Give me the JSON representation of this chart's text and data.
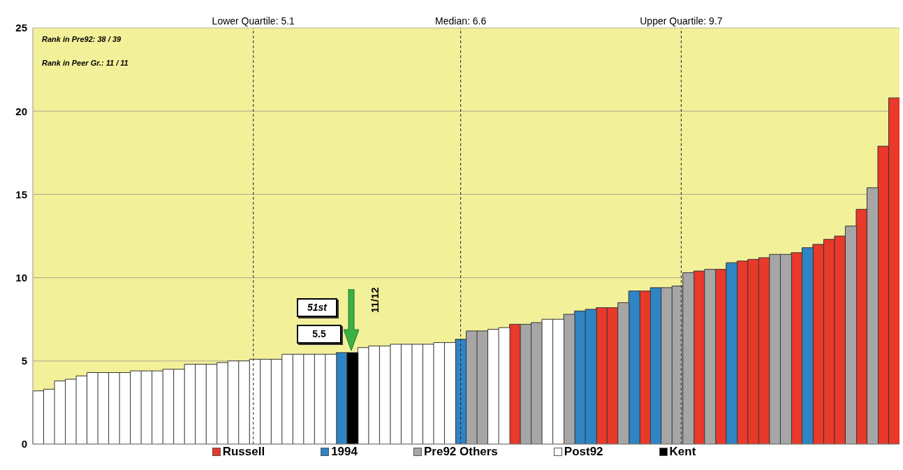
{
  "chart_data": {
    "type": "bar",
    "stacked": true,
    "categories": [
      null,
      null,
      null,
      null,
      null,
      null,
      null,
      null,
      null,
      null,
      null,
      null,
      null,
      null,
      null,
      null,
      null,
      null,
      null,
      null,
      null,
      null,
      null,
      null,
      null,
      null,
      null,
      null,
      null,
      null,
      null,
      null,
      null,
      null,
      null,
      null,
      null,
      null,
      null,
      null,
      null,
      null,
      null,
      null,
      null,
      null,
      null,
      null,
      null,
      null,
      null,
      null,
      null,
      null,
      null,
      null,
      null,
      null,
      null,
      null,
      null,
      null,
      null,
      null,
      null,
      null,
      null,
      null,
      null,
      null,
      null,
      null,
      null,
      null,
      null,
      null,
      null,
      null,
      null,
      null
    ],
    "series": [
      {
        "name": "Russell",
        "color": "#e8392a",
        "values": [
          null,
          null,
          null,
          null,
          null,
          null,
          null,
          null,
          null,
          null,
          null,
          null,
          null,
          null,
          null,
          null,
          null,
          null,
          null,
          null,
          null,
          null,
          null,
          null,
          null,
          null,
          null,
          null,
          null,
          null,
          null,
          null,
          null,
          null,
          null,
          null,
          null,
          null,
          null,
          null,
          null,
          null,
          null,
          null,
          7.2,
          null,
          null,
          null,
          null,
          null,
          null,
          null,
          8.2,
          8.2,
          null,
          null,
          9.2,
          null,
          null,
          null,
          null,
          10.4,
          null,
          10.5,
          null,
          11.0,
          11.1,
          11.2,
          null,
          null,
          11.5,
          null,
          12.0,
          12.3,
          12.5,
          null,
          14.1,
          null,
          17.9,
          20.8
        ]
      },
      {
        "name": "1994",
        "color": "#2f84c4",
        "values": [
          null,
          null,
          null,
          null,
          null,
          null,
          null,
          null,
          null,
          null,
          null,
          null,
          null,
          null,
          null,
          null,
          null,
          null,
          null,
          null,
          null,
          null,
          null,
          null,
          null,
          null,
          null,
          null,
          5.5,
          null,
          null,
          null,
          null,
          null,
          null,
          null,
          null,
          null,
          null,
          6.3,
          null,
          null,
          null,
          null,
          null,
          null,
          null,
          null,
          null,
          null,
          8.0,
          8.1,
          null,
          null,
          null,
          9.2,
          null,
          9.4,
          null,
          null,
          null,
          null,
          null,
          null,
          10.9,
          null,
          null,
          null,
          null,
          null,
          null,
          11.8,
          null,
          null,
          null,
          null,
          null,
          null,
          null,
          null
        ]
      },
      {
        "name": "Pre92 Others",
        "color": "#a6a6a6",
        "values": [
          null,
          null,
          null,
          null,
          null,
          null,
          null,
          null,
          null,
          null,
          null,
          null,
          null,
          null,
          null,
          null,
          null,
          null,
          null,
          null,
          null,
          null,
          null,
          null,
          null,
          null,
          null,
          null,
          null,
          null,
          null,
          null,
          null,
          null,
          null,
          null,
          null,
          null,
          null,
          null,
          6.8,
          6.8,
          null,
          null,
          null,
          7.2,
          7.3,
          null,
          null,
          7.8,
          null,
          null,
          null,
          null,
          8.5,
          null,
          null,
          null,
          9.4,
          9.5,
          10.3,
          null,
          10.5,
          null,
          null,
          null,
          null,
          null,
          11.4,
          11.4,
          null,
          null,
          null,
          null,
          null,
          13.1,
          null,
          15.4,
          null,
          null
        ]
      },
      {
        "name": "Post92",
        "color": "#ffffff",
        "values": [
          3.2,
          3.3,
          3.8,
          3.9,
          4.1,
          4.3,
          4.3,
          4.3,
          4.3,
          4.4,
          4.4,
          4.4,
          4.5,
          4.5,
          4.8,
          4.8,
          4.8,
          4.9,
          5.0,
          5.0,
          5.1,
          5.1,
          5.1,
          5.4,
          5.4,
          5.4,
          5.4,
          5.4,
          null,
          null,
          5.8,
          5.9,
          5.9,
          6.0,
          6.0,
          6.0,
          6.0,
          6.1,
          6.1,
          null,
          null,
          null,
          6.9,
          7.0,
          null,
          null,
          null,
          7.5,
          7.5,
          null,
          null,
          null,
          null,
          null,
          null,
          null,
          null,
          null,
          null,
          null,
          null,
          null,
          null,
          null,
          null,
          null,
          null,
          null,
          null,
          null,
          null,
          null,
          null,
          null,
          null,
          null,
          null,
          null,
          null,
          null
        ]
      },
      {
        "name": "Kent",
        "color": "#000000",
        "values": [
          null,
          null,
          null,
          null,
          null,
          null,
          null,
          null,
          null,
          null,
          null,
          null,
          null,
          null,
          null,
          null,
          null,
          null,
          null,
          null,
          null,
          null,
          null,
          null,
          null,
          null,
          null,
          null,
          null,
          5.5,
          null,
          null,
          null,
          null,
          null,
          null,
          null,
          null,
          null,
          null,
          null,
          null,
          null,
          null,
          null,
          null,
          null,
          null,
          null,
          null,
          null,
          null,
          null,
          null,
          null,
          null,
          null,
          null,
          null,
          null,
          null,
          null,
          null,
          null,
          null,
          null,
          null,
          null,
          null,
          null,
          null,
          null,
          null,
          null,
          null,
          null,
          null,
          null,
          null,
          null
        ]
      }
    ],
    "ylim": [
      0,
      25
    ],
    "yticks": [
      0,
      5,
      10,
      15,
      20,
      25
    ],
    "grid": "y",
    "legend": "bottom",
    "tick_labels": "y",
    "annotations": [
      "Rank in Pre92: 38 / 39",
      "Rank in Peer Gr.: 11 / 11",
      "51st",
      "5.5",
      "11/12",
      "Lower Quartile: 5.1",
      "Median: 6.6",
      "Upper Quartile: 9.7"
    ]
  }
}
